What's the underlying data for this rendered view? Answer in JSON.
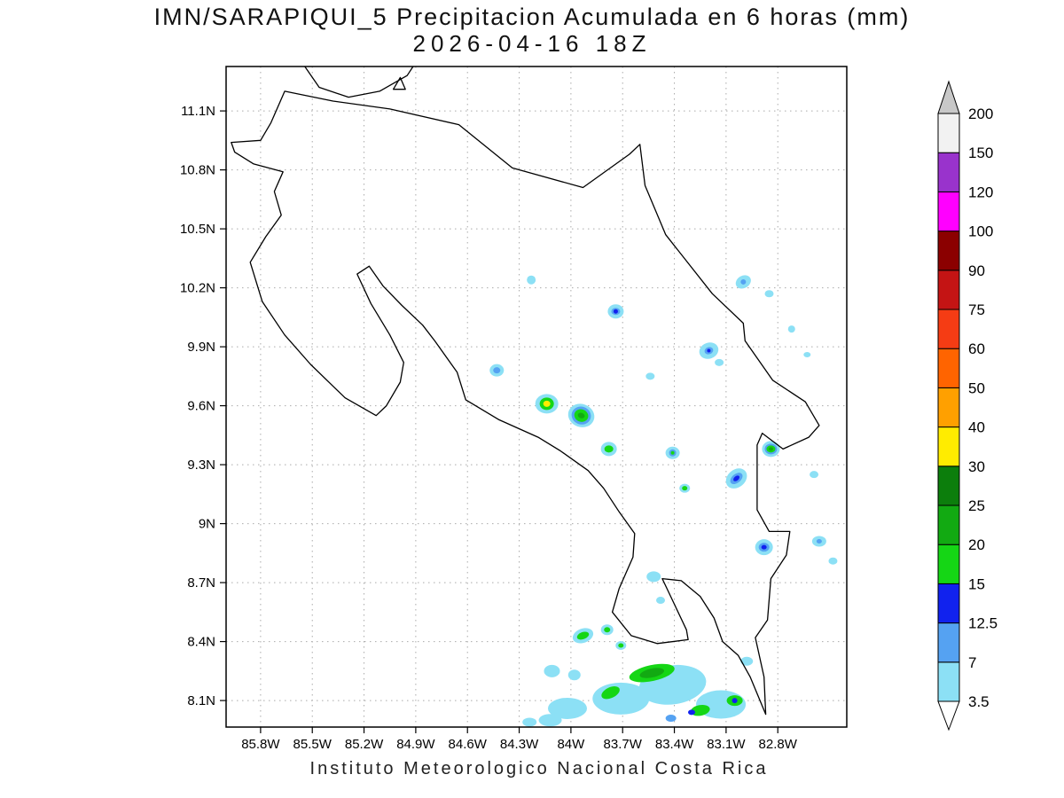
{
  "title": {
    "line1": "IMN/SARAPIQUI_5 Precipitacion Acumulada en 6 horas (mm)",
    "line2": "2026-04-16 18Z"
  },
  "footer": "Instituto Meteorologico Nacional Costa Rica",
  "chart_data": {
    "type": "heatmap",
    "subtype": "precipitation-shaded-map",
    "region": "Costa Rica",
    "units": "mm",
    "grid": "dotted",
    "x_axis": {
      "label": "longitude",
      "ticks": [
        {
          "label": "85.8W",
          "lon": 85.8
        },
        {
          "label": "85.5W",
          "lon": 85.5
        },
        {
          "label": "85.2W",
          "lon": 85.2
        },
        {
          "label": "84.9W",
          "lon": 84.9
        },
        {
          "label": "84.6W",
          "lon": 84.6
        },
        {
          "label": "84.3W",
          "lon": 84.3
        },
        {
          "label": "84W",
          "lon": 84.0
        },
        {
          "label": "83.7W",
          "lon": 83.7
        },
        {
          "label": "83.4W",
          "lon": 83.4
        },
        {
          "label": "83.1W",
          "lon": 83.1
        },
        {
          "label": "82.8W",
          "lon": 82.8
        }
      ]
    },
    "y_axis": {
      "label": "latitude",
      "ticks": [
        {
          "label": "11.1N",
          "lat": 11.1
        },
        {
          "label": "10.8N",
          "lat": 10.8
        },
        {
          "label": "10.5N",
          "lat": 10.5
        },
        {
          "label": "10.2N",
          "lat": 10.2
        },
        {
          "label": "9.9N",
          "lat": 9.9
        },
        {
          "label": "9.6N",
          "lat": 9.6
        },
        {
          "label": "9.3N",
          "lat": 9.3
        },
        {
          "label": "9N",
          "lat": 9.0
        },
        {
          "label": "8.7N",
          "lat": 8.7
        },
        {
          "label": "8.4N",
          "lat": 8.4
        },
        {
          "label": "8.1N",
          "lat": 8.1
        }
      ]
    },
    "colorbar": {
      "boundaries": [
        "3.5",
        "7",
        "12.5",
        "15",
        "20",
        "25",
        "30",
        "40",
        "50",
        "60",
        "75",
        "90",
        "100",
        "120",
        "150",
        "200"
      ],
      "palette": {
        "3.5": "#8ce0f5",
        "7": "#55a2f2",
        "12.5": "#1122ee",
        "15": "#15d615",
        "20": "#12aa12",
        "25": "#0c7e0c",
        "30": "#ffec00",
        "40": "#ffa000",
        "50": "#ff6400",
        "60": "#f53c14",
        "75": "#c41414",
        "90": "#8b0000",
        "100": "#ff00ff",
        "120": "#9933cc",
        "150": "#f2f2f2",
        "200": "#c8c8c8"
      },
      "below_min_color": "#ffffff"
    },
    "coastline": {
      "segments": [
        {
          "name": "costa-rica-outline",
          "closed": true,
          "points": [
            [
              85.74,
              11.04
            ],
            [
              85.66,
              11.2
            ],
            [
              85.38,
              11.15
            ],
            [
              85.05,
              11.11
            ],
            [
              84.65,
              11.03
            ],
            [
              84.34,
              10.81
            ],
            [
              83.93,
              10.71
            ],
            [
              83.66,
              10.88
            ],
            [
              83.6,
              10.93
            ],
            [
              83.57,
              10.72
            ],
            [
              83.45,
              10.47
            ],
            [
              83.18,
              10.17
            ],
            [
              83.0,
              10.02
            ],
            [
              82.99,
              9.93
            ],
            [
              82.83,
              9.73
            ],
            [
              82.64,
              9.62
            ],
            [
              82.56,
              9.5
            ],
            [
              82.62,
              9.44
            ],
            [
              82.77,
              9.38
            ],
            [
              82.89,
              9.46
            ],
            [
              82.92,
              9.4
            ],
            [
              82.92,
              9.07
            ],
            [
              82.85,
              8.96
            ],
            [
              82.73,
              8.96
            ],
            [
              82.75,
              8.84
            ],
            [
              82.84,
              8.72
            ],
            [
              82.86,
              8.51
            ],
            [
              82.93,
              8.42
            ],
            [
              82.88,
              8.22
            ],
            [
              82.87,
              8.03
            ],
            [
              82.96,
              8.22
            ],
            [
              83.03,
              8.33
            ],
            [
              83.12,
              8.4
            ],
            [
              83.17,
              8.52
            ],
            [
              83.25,
              8.63
            ],
            [
              83.36,
              8.71
            ],
            [
              83.47,
              8.72
            ],
            [
              83.4,
              8.59
            ],
            [
              83.33,
              8.46
            ],
            [
              83.32,
              8.41
            ],
            [
              83.5,
              8.39
            ],
            [
              83.65,
              8.43
            ],
            [
              83.76,
              8.55
            ],
            [
              83.72,
              8.67
            ],
            [
              83.64,
              8.83
            ],
            [
              83.63,
              8.95
            ],
            [
              83.72,
              9.06
            ],
            [
              83.81,
              9.18
            ],
            [
              83.9,
              9.27
            ],
            [
              84.06,
              9.37
            ],
            [
              84.19,
              9.44
            ],
            [
              84.42,
              9.53
            ],
            [
              84.61,
              9.63
            ],
            [
              84.66,
              9.77
            ],
            [
              84.79,
              9.93
            ],
            [
              84.86,
              10.01
            ],
            [
              84.98,
              10.11
            ],
            [
              85.09,
              10.21
            ],
            [
              85.17,
              10.31
            ],
            [
              85.24,
              10.27
            ],
            [
              85.16,
              10.12
            ],
            [
              85.05,
              9.96
            ],
            [
              84.97,
              9.82
            ],
            [
              84.99,
              9.72
            ],
            [
              85.07,
              9.6
            ],
            [
              85.13,
              9.55
            ],
            [
              85.31,
              9.64
            ],
            [
              85.51,
              9.81
            ],
            [
              85.66,
              9.96
            ],
            [
              85.79,
              10.13
            ],
            [
              85.86,
              10.33
            ],
            [
              85.77,
              10.46
            ],
            [
              85.68,
              10.57
            ],
            [
              85.72,
              10.69
            ],
            [
              85.67,
              10.79
            ],
            [
              85.84,
              10.83
            ],
            [
              85.95,
              10.89
            ],
            [
              85.97,
              10.94
            ],
            [
              85.8,
              10.95
            ]
          ]
        },
        {
          "name": "lake-nicaragua-shore",
          "closed": false,
          "points": [
            [
              85.57,
              11.36
            ],
            [
              85.46,
              11.22
            ],
            [
              85.29,
              11.17
            ],
            [
              85.11,
              11.2
            ],
            [
              84.95,
              11.28
            ],
            [
              84.89,
              11.36
            ]
          ]
        },
        {
          "name": "lake-nicaragua-island",
          "closed": true,
          "points": [
            [
              85.03,
              11.21
            ],
            [
              84.96,
              11.21
            ],
            [
              84.99,
              11.27
            ]
          ]
        }
      ]
    },
    "precip_cells": [
      {
        "lon": 84.23,
        "lat": 10.24,
        "layers": [
          [
            "3.5",
            5,
            5,
            0
          ]
        ]
      },
      {
        "lon": 83.0,
        "lat": 10.23,
        "layers": [
          [
            "3.5",
            9,
            7,
            -30
          ],
          [
            "7",
            3,
            3,
            0
          ]
        ]
      },
      {
        "lon": 82.85,
        "lat": 10.17,
        "layers": [
          [
            "3.5",
            5,
            4,
            0
          ]
        ]
      },
      {
        "lon": 83.74,
        "lat": 10.08,
        "layers": [
          [
            "3.5",
            9,
            8,
            0
          ],
          [
            "7",
            5,
            4,
            0
          ],
          [
            "12.5",
            2.5,
            2.5,
            0
          ]
        ]
      },
      {
        "lon": 82.72,
        "lat": 9.99,
        "layers": [
          [
            "3.5",
            4,
            4,
            0
          ]
        ]
      },
      {
        "lon": 83.2,
        "lat": 9.88,
        "layers": [
          [
            "3.5",
            11,
            9,
            -20
          ],
          [
            "7",
            5,
            4,
            -20
          ],
          [
            "12.5",
            2,
            2,
            0
          ]
        ]
      },
      {
        "lon": 83.14,
        "lat": 9.82,
        "layers": [
          [
            "3.5",
            5,
            4,
            0
          ]
        ]
      },
      {
        "lon": 82.63,
        "lat": 9.86,
        "layers": [
          [
            "3.5",
            4,
            3,
            0
          ]
        ]
      },
      {
        "lon": 84.43,
        "lat": 9.78,
        "layers": [
          [
            "3.5",
            8,
            7,
            0
          ],
          [
            "7",
            4,
            3.5,
            0
          ]
        ]
      },
      {
        "lon": 83.54,
        "lat": 9.75,
        "layers": [
          [
            "3.5",
            5,
            4,
            0
          ]
        ]
      },
      {
        "lon": 84.14,
        "lat": 9.61,
        "layers": [
          [
            "3.5",
            13,
            11,
            0
          ],
          [
            "15",
            8,
            7,
            0
          ],
          [
            "30",
            4,
            3.5,
            0
          ]
        ]
      },
      {
        "lon": 83.94,
        "lat": 9.55,
        "layers": [
          [
            "3.5",
            15,
            13,
            20
          ],
          [
            "7",
            11,
            10,
            20
          ],
          [
            "15",
            8,
            7,
            20
          ],
          [
            "20",
            4,
            3,
            20
          ]
        ]
      },
      {
        "lon": 83.78,
        "lat": 9.38,
        "layers": [
          [
            "3.5",
            9,
            8,
            0
          ],
          [
            "15",
            5,
            4,
            0
          ]
        ]
      },
      {
        "lon": 83.41,
        "lat": 9.36,
        "layers": [
          [
            "3.5",
            8,
            7,
            0
          ],
          [
            "7",
            4,
            4,
            0
          ],
          [
            "15",
            2,
            2,
            0
          ]
        ]
      },
      {
        "lon": 83.04,
        "lat": 9.23,
        "layers": [
          [
            "3.5",
            13,
            10,
            -40
          ],
          [
            "7",
            8,
            5,
            -40
          ],
          [
            "12.5",
            4,
            2.5,
            -40
          ]
        ]
      },
      {
        "lon": 83.34,
        "lat": 9.18,
        "layers": [
          [
            "3.5",
            6,
            5,
            0
          ],
          [
            "15",
            3,
            2.5,
            0
          ]
        ]
      },
      {
        "lon": 82.84,
        "lat": 9.38,
        "layers": [
          [
            "3.5",
            10,
            9,
            0
          ],
          [
            "7",
            7,
            6,
            0
          ],
          [
            "15",
            5,
            4,
            0
          ],
          [
            "20",
            2.5,
            2,
            0
          ]
        ]
      },
      {
        "lon": 82.59,
        "lat": 9.25,
        "layers": [
          [
            "3.5",
            5,
            4,
            0
          ]
        ]
      },
      {
        "lon": 82.88,
        "lat": 8.88,
        "layers": [
          [
            "3.5",
            10,
            9,
            0
          ],
          [
            "7",
            6,
            5,
            0
          ],
          [
            "12.5",
            3,
            2.5,
            0
          ]
        ]
      },
      {
        "lon": 82.56,
        "lat": 8.91,
        "layers": [
          [
            "3.5",
            8,
            6,
            0
          ],
          [
            "7",
            3,
            2.5,
            0
          ]
        ]
      },
      {
        "lon": 82.48,
        "lat": 8.81,
        "layers": [
          [
            "3.5",
            5,
            4,
            0
          ]
        ]
      },
      {
        "lon": 83.52,
        "lat": 8.73,
        "layers": [
          [
            "3.5",
            8,
            6,
            0
          ]
        ]
      },
      {
        "lon": 83.48,
        "lat": 8.61,
        "layers": [
          [
            "3.5",
            5,
            4,
            0
          ]
        ]
      },
      {
        "lon": 83.93,
        "lat": 8.43,
        "layers": [
          [
            "3.5",
            12,
            8,
            -20
          ],
          [
            "15",
            7,
            4,
            -20
          ]
        ]
      },
      {
        "lon": 83.79,
        "lat": 8.46,
        "layers": [
          [
            "3.5",
            7,
            6,
            0
          ],
          [
            "15",
            3.5,
            3,
            0
          ]
        ]
      },
      {
        "lon": 83.71,
        "lat": 8.38,
        "layers": [
          [
            "3.5",
            6,
            5,
            0
          ],
          [
            "15",
            3,
            2.5,
            0
          ]
        ]
      },
      {
        "lon": 84.02,
        "lat": 8.06,
        "layers": [
          [
            "3.5",
            22,
            12,
            0
          ]
        ]
      },
      {
        "lon": 83.71,
        "lat": 8.11,
        "layers": [
          [
            "3.5",
            32,
            18,
            0
          ]
        ]
      },
      {
        "lon": 83.41,
        "lat": 8.18,
        "layers": [
          [
            "3.5",
            38,
            22,
            -8
          ]
        ]
      },
      {
        "lon": 83.13,
        "lat": 8.08,
        "layers": [
          [
            "3.5",
            28,
            16,
            0
          ]
        ]
      },
      {
        "lon": 84.11,
        "lat": 8.25,
        "layers": [
          [
            "3.5",
            9,
            7,
            0
          ]
        ]
      },
      {
        "lon": 83.98,
        "lat": 8.23,
        "layers": [
          [
            "3.5",
            7,
            6,
            0
          ]
        ]
      },
      {
        "lon": 83.77,
        "lat": 8.14,
        "layers": [
          [
            "15",
            11,
            6,
            -25
          ]
        ]
      },
      {
        "lon": 83.53,
        "lat": 8.24,
        "layers": [
          [
            "15",
            26,
            9,
            -12
          ],
          [
            "20",
            14,
            5,
            -12
          ]
        ]
      },
      {
        "lon": 83.25,
        "lat": 8.05,
        "layers": [
          [
            "15",
            11,
            6,
            -10
          ]
        ]
      },
      {
        "lon": 83.05,
        "lat": 8.1,
        "layers": [
          [
            "15",
            9,
            6,
            0
          ],
          [
            "12.5",
            3,
            3,
            0
          ]
        ]
      },
      {
        "lon": 83.3,
        "lat": 8.04,
        "layers": [
          [
            "12.5",
            4,
            3,
            0
          ]
        ]
      },
      {
        "lon": 83.42,
        "lat": 8.01,
        "layers": [
          [
            "7",
            6,
            4,
            0
          ]
        ]
      },
      {
        "lon": 84.12,
        "lat": 8.0,
        "layers": [
          [
            "3.5",
            13,
            7,
            0
          ]
        ]
      },
      {
        "lon": 82.98,
        "lat": 8.3,
        "layers": [
          [
            "3.5",
            7,
            5,
            0
          ]
        ]
      },
      {
        "lon": 84.24,
        "lat": 7.99,
        "layers": [
          [
            "3.5",
            8,
            5,
            0
          ]
        ]
      }
    ]
  }
}
